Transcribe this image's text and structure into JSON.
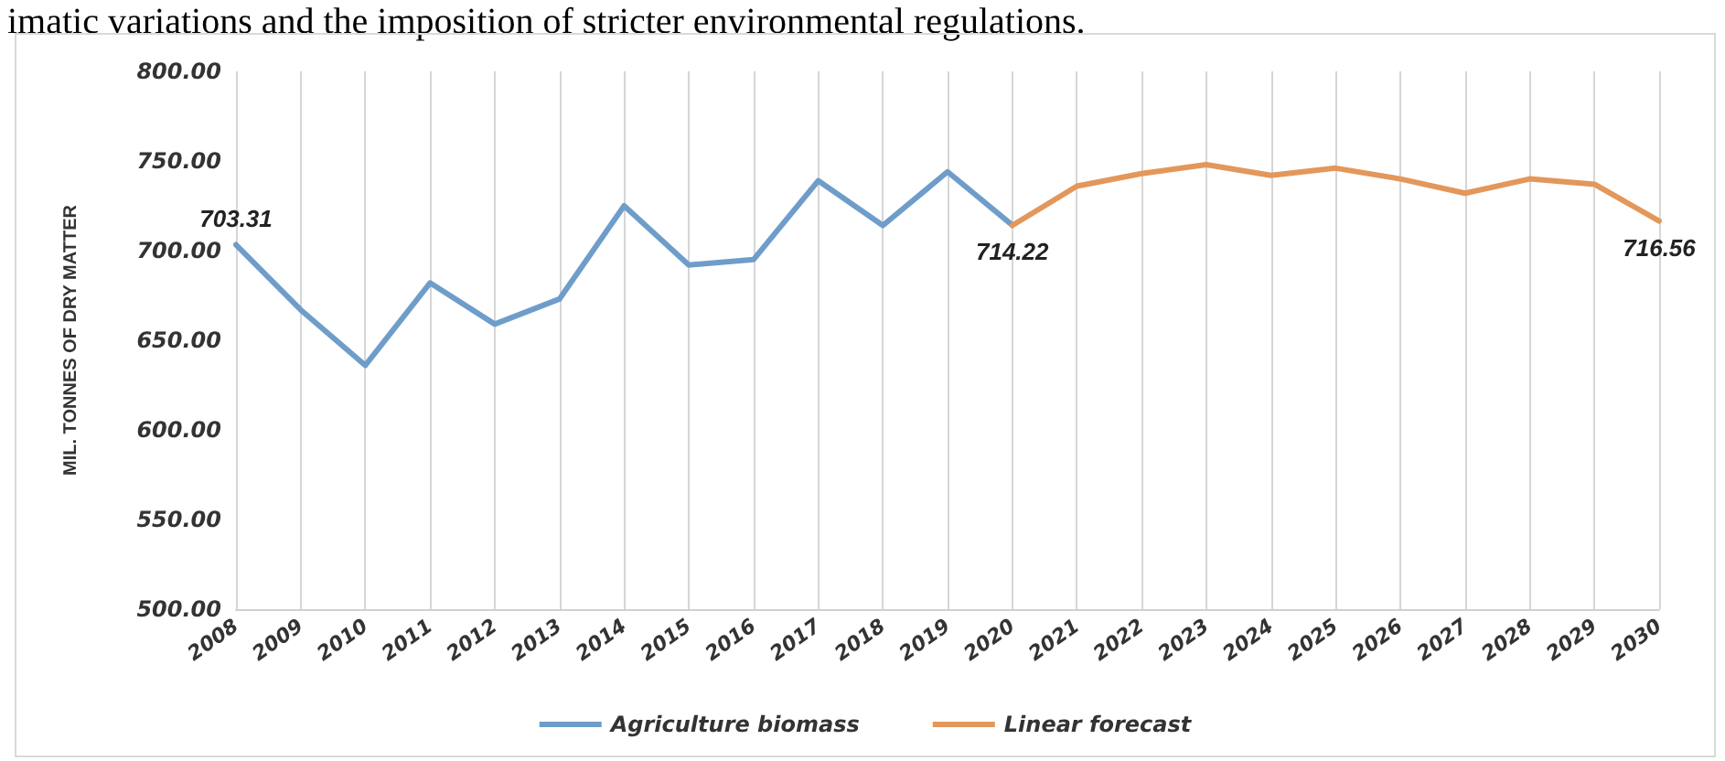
{
  "chart_data": {
    "type": "line",
    "annotations": [
      "imatic variations and the imposition of stricter environmental regulations."
    ],
    "ylabel": "MIL. TONNES OF DRY MATTER",
    "categories": [
      "2008",
      "2009",
      "2010",
      "2011",
      "2012",
      "2013",
      "2014",
      "2015",
      "2016",
      "2017",
      "2018",
      "2019",
      "2020",
      "2021",
      "2022",
      "2023",
      "2024",
      "2025",
      "2026",
      "2027",
      "2028",
      "2029",
      "2030"
    ],
    "series": [
      {
        "name": "Agriculture biomass",
        "color": "#6f9dca",
        "values": [
          703.31,
          667,
          636,
          682,
          659,
          673,
          725,
          692,
          695,
          739,
          714,
          744,
          714.22,
          null,
          null,
          null,
          null,
          null,
          null,
          null,
          null,
          null,
          null
        ],
        "value_labels": [
          "703.31",
          null,
          null,
          null,
          null,
          null,
          null,
          null,
          null,
          null,
          null,
          null,
          "714.22",
          null,
          null,
          null,
          null,
          null,
          null,
          null,
          null,
          null,
          null
        ]
      },
      {
        "name": "Linear forecast",
        "color": "#e3975a",
        "values": [
          null,
          null,
          null,
          null,
          null,
          null,
          null,
          null,
          null,
          null,
          null,
          null,
          714,
          736,
          743,
          748,
          742,
          746,
          740,
          732,
          740,
          737,
          716.56
        ],
        "value_labels": [
          null,
          null,
          null,
          null,
          null,
          null,
          null,
          null,
          null,
          null,
          null,
          null,
          null,
          null,
          null,
          null,
          null,
          null,
          null,
          null,
          null,
          null,
          "716.56"
        ]
      }
    ],
    "ylim": [
      500,
      800
    ],
    "yticks": [
      {
        "value": 500,
        "label": "500.00"
      },
      {
        "value": 550,
        "label": "550.00"
      },
      {
        "value": 600,
        "label": "600.00"
      },
      {
        "value": 650,
        "label": "650.00"
      },
      {
        "value": 700,
        "label": "700.00"
      },
      {
        "value": 750,
        "label": "750.00"
      },
      {
        "value": 800,
        "label": "800.00"
      }
    ],
    "grid": "x",
    "legend": "bottom",
    "marker": "none",
    "line_style": "solid"
  }
}
